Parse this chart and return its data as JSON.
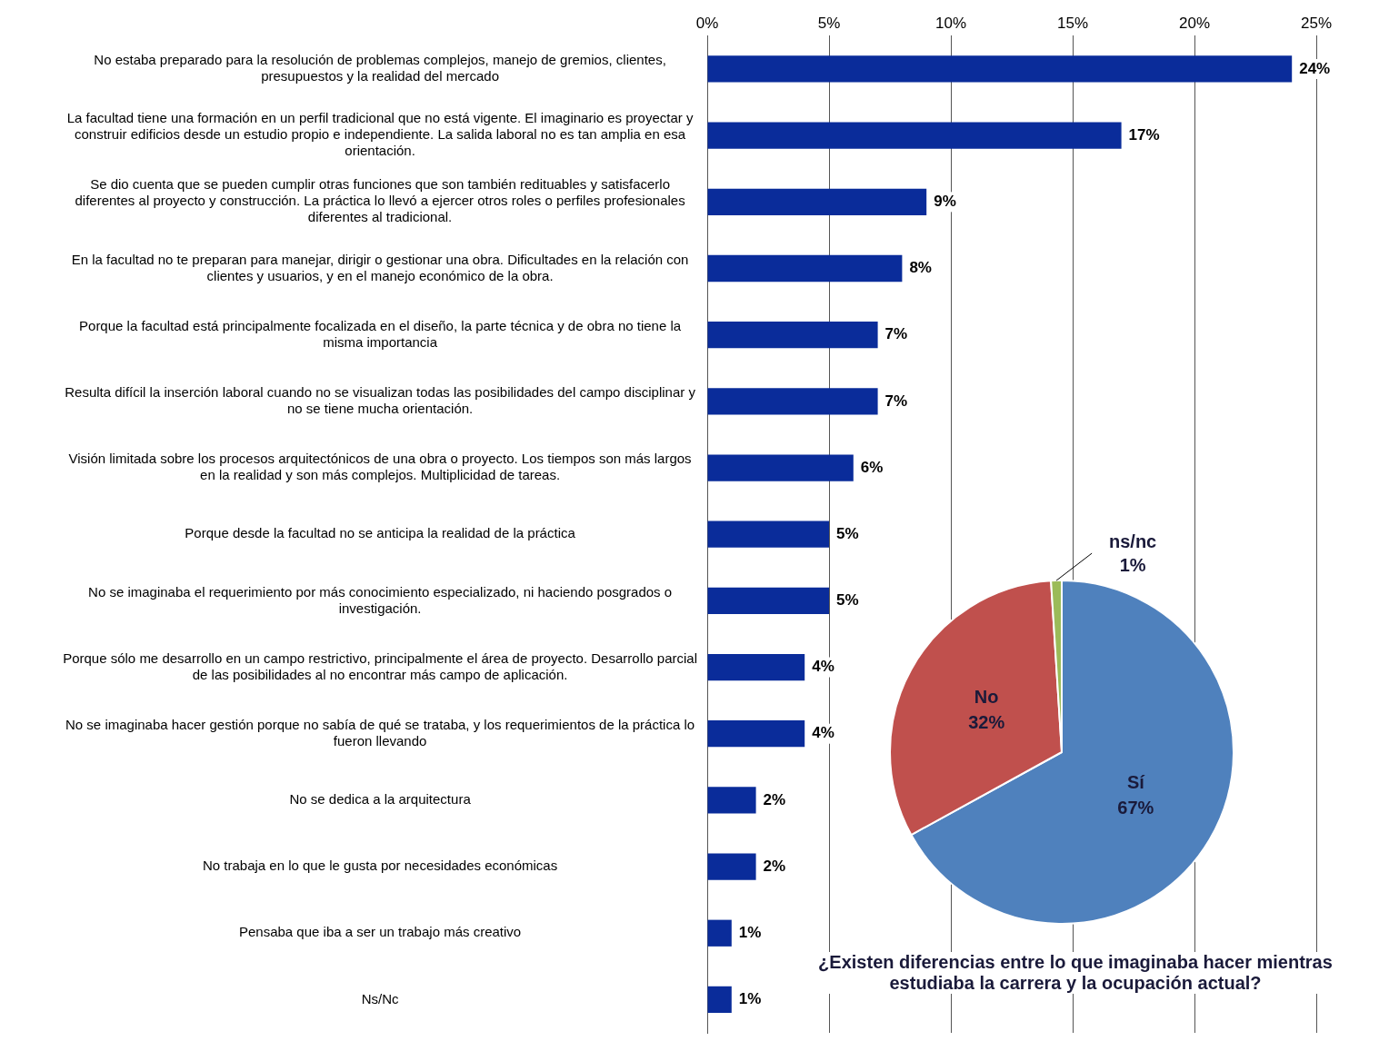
{
  "chart_data": [
    {
      "type": "bar",
      "orientation": "horizontal",
      "categories": [
        "No estaba preparado para la resolución de problemas complejos, manejo de gremios, clientes, presupuestos y la realidad del mercado",
        "La facultad tiene una formación en un perfil tradicional que no está vigente. El imaginario es proyectar y construir edificios desde un estudio propio e independiente. La salida laboral no es tan amplia en esa orientación.",
        "Se dio cuenta que se pueden cumplir otras funciones que son también redituables y satisfacerlo diferentes al proyecto y construcción. La práctica lo llevó a ejercer otros roles o perfiles profesionales diferentes al tradicional.",
        "En la facultad no te preparan para manejar, dirigir o gestionar una obra. Dificultades en la relación con clientes y usuarios, y en el manejo económico de la obra.",
        "Porque la facultad está principalmente focalizada en el diseño, la parte técnica y de obra no tiene la misma importancia",
        "Resulta difícil la inserción laboral cuando no se visualizan todas las posibilidades del campo disciplinar y no se tiene mucha orientación.",
        "Visión limitada sobre los procesos arquitectónicos de una obra o proyecto. Los tiempos son más largos en la realidad y son más complejos. Multiplicidad de tareas.",
        "Porque desde la facultad no se anticipa la realidad de la práctica",
        "No se imaginaba el requerimiento por más conocimiento especializado, ni haciendo posgrados o investigación.",
        "Porque sólo me desarrollo en un campo restrictivo, principalmente el área de proyecto. Desarrollo parcial de las posibilidades al no encontrar más campo de aplicación.",
        "No se imaginaba hacer gestión porque no sabía de qué se trataba, y los requerimientos de la práctica lo fueron llevando",
        "No se dedica a la arquitectura",
        "No trabaja en lo que le gusta por necesidades económicas",
        "Pensaba que iba a ser un trabajo más creativo",
        "Ns/Nc"
      ],
      "values": [
        24,
        17,
        9,
        8,
        7,
        7,
        6,
        5,
        5,
        4,
        4,
        2,
        2,
        1,
        1
      ],
      "value_labels": [
        "24%",
        "17%",
        "9%",
        "8%",
        "7%",
        "7%",
        "6%",
        "5%",
        "5%",
        "4%",
        "4%",
        "2%",
        "2%",
        "1%",
        "1%"
      ],
      "color": "#0a2c9a",
      "xlim": [
        0,
        25
      ],
      "xticks": [
        {
          "value": 0,
          "label": "0%"
        },
        {
          "value": 5,
          "label": "5%"
        },
        {
          "value": 10,
          "label": "10%"
        },
        {
          "value": 15,
          "label": "15%"
        },
        {
          "value": 20,
          "label": "20%"
        },
        {
          "value": 25,
          "label": "25%"
        }
      ],
      "grid": "x",
      "legend": false
    },
    {
      "type": "pie",
      "title": "¿Existen diferencias entre lo que imaginaba hacer mientras estudiaba la carrera y la ocupación actual?",
      "categories": [
        "Sí",
        "No",
        "ns/nc"
      ],
      "values": [
        67,
        32,
        1
      ],
      "value_labels": [
        "67%",
        "32%",
        "1%"
      ],
      "colors": [
        "#4f81bd",
        "#c0504d",
        "#9bbb59"
      ],
      "legend": false
    }
  ]
}
